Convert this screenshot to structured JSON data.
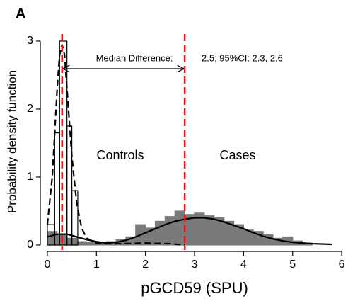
{
  "chart_data": {
    "type": "histogram",
    "panel_label": "A",
    "xlabel": "pGCD59 (SPU)",
    "ylabel": "Probability density function",
    "xlim": [
      -0.1,
      6.1
    ],
    "ylim": [
      -0.07,
      3.15
    ],
    "xticks": [
      0,
      1,
      2,
      3,
      4,
      5,
      6
    ],
    "yticks": [
      0,
      1,
      2,
      3
    ],
    "histograms": [
      {
        "color": "#7a7a7a",
        "edgecolor": "#7a7a7a",
        "bins": [
          0,
          0.2,
          0.4,
          0.6,
          0.8,
          1.0,
          1.2,
          1.4,
          1.6,
          1.8,
          2.0,
          2.2,
          2.4,
          2.6,
          2.8,
          3.0,
          3.2,
          3.4,
          3.6,
          3.8,
          4.0,
          4.2,
          4.4,
          4.6,
          4.8,
          5.0,
          5.2,
          5.4
        ],
        "values": [
          0.2,
          0.15,
          0.1,
          0.05,
          0.04,
          0.03,
          0.05,
          0.08,
          0.12,
          0.3,
          0.25,
          0.35,
          0.42,
          0.5,
          0.45,
          0.47,
          0.43,
          0.4,
          0.35,
          0.3,
          0.22,
          0.2,
          0.15,
          0.1,
          0.12,
          0.06,
          0.03
        ]
      },
      {
        "color": "none",
        "edgecolor": "#000000",
        "bins": [
          0,
          0.15,
          0.25,
          0.4,
          0.5,
          0.62
        ],
        "values": [
          0.3,
          1.65,
          3.0,
          1.75,
          0.8
        ]
      }
    ],
    "curves": [
      {
        "color": "#000000",
        "dashed": true,
        "x": [
          0,
          0.1,
          0.2,
          0.25,
          0.3,
          0.35,
          0.4,
          0.5,
          0.6,
          0.7,
          0.8,
          1.0,
          1.2,
          1.5,
          2.0,
          2.5,
          2.8
        ],
        "values": [
          0.3,
          1.0,
          2.3,
          2.8,
          2.95,
          2.8,
          2.3,
          1.3,
          0.6,
          0.25,
          0.1,
          0.03,
          0.02,
          0.02,
          0.03,
          0.02,
          0.0
        ]
      },
      {
        "color": "#000000",
        "dashed": false,
        "x": [
          0,
          0.2,
          0.4,
          0.6,
          0.8,
          1.0,
          1.2,
          1.4,
          1.6,
          1.8,
          2.0,
          2.2,
          2.4,
          2.6,
          2.8,
          3.0,
          3.2,
          3.4,
          3.6,
          3.8,
          4.0,
          4.2,
          4.4,
          4.6,
          4.8,
          5.0,
          5.4,
          5.8
        ],
        "values": [
          0.12,
          0.16,
          0.16,
          0.12,
          0.08,
          0.05,
          0.03,
          0.04,
          0.07,
          0.12,
          0.18,
          0.24,
          0.3,
          0.35,
          0.38,
          0.4,
          0.4,
          0.38,
          0.34,
          0.29,
          0.24,
          0.18,
          0.13,
          0.09,
          0.06,
          0.04,
          0.02,
          0.01
        ]
      }
    ],
    "medians": [
      0.3,
      2.8
    ],
    "median_color": "#e8161b",
    "annotation_label": "Median Difference:",
    "annotation_value": "2.5; 95%CI: 2.3, 2.6",
    "group_labels": [
      "Controls",
      "Cases"
    ]
  }
}
